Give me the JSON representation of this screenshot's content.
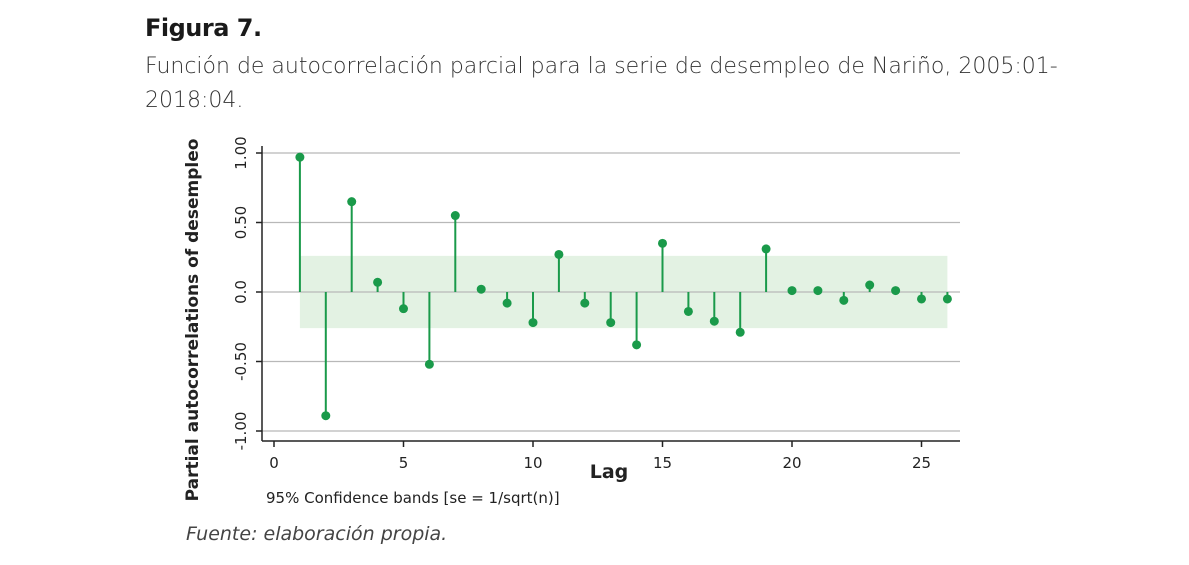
{
  "figure": {
    "label": "Figura 7.",
    "title": "Función de autocorrelación parcial para la serie de desempleo de Nariño, 2005:01-2018:04.",
    "note": "95% Confidence bands [se = 1/sqrt(n)]",
    "source": "Fuente: elaboración propia."
  },
  "colors": {
    "stem": "#1a9a4a",
    "band": "#e3f2e3",
    "grid": "#b8b8b8",
    "axis": "#222222"
  },
  "chart_data": {
    "type": "scatter",
    "style": "stem",
    "xlabel": "Lag",
    "ylabel": "Partial autocorrelations of desempleo",
    "xlim": [
      0,
      26
    ],
    "ylim": [
      -1.0,
      1.0
    ],
    "xticks": [
      0,
      5,
      10,
      15,
      20,
      25
    ],
    "xtick_labels": [
      "0",
      "5",
      "10",
      "15",
      "20",
      "25"
    ],
    "yticks": [
      -1.0,
      -0.5,
      0.0,
      0.5,
      1.0
    ],
    "ytick_labels": [
      "-1.00",
      "-0.50",
      "0.0",
      "0.50",
      "1.00"
    ],
    "grid": true,
    "confidence_band": [
      -0.26,
      0.26
    ],
    "x": [
      1,
      2,
      3,
      4,
      5,
      6,
      7,
      8,
      9,
      10,
      11,
      12,
      13,
      14,
      15,
      16,
      17,
      18,
      19,
      20,
      21,
      22,
      23,
      24,
      25,
      26
    ],
    "values": [
      0.97,
      -0.89,
      0.65,
      0.07,
      -0.12,
      -0.52,
      0.55,
      0.02,
      -0.08,
      -0.22,
      0.27,
      -0.08,
      -0.22,
      -0.38,
      0.35,
      -0.14,
      -0.21,
      -0.29,
      0.31,
      0.01,
      0.01,
      -0.06,
      0.05,
      0.01,
      -0.05,
      -0.05
    ]
  }
}
